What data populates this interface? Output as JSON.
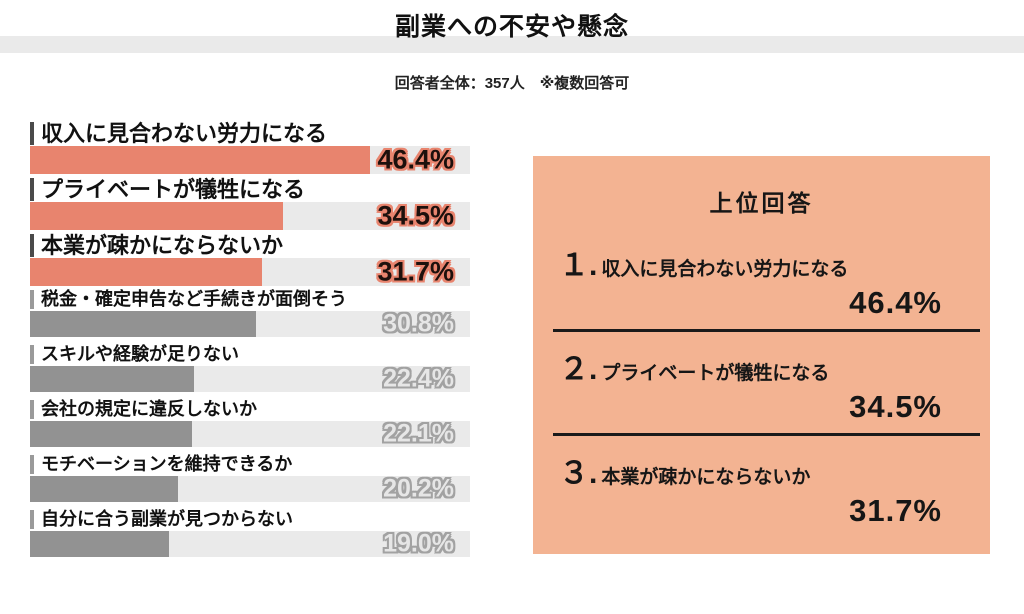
{
  "header": {
    "title": "副業への不安や懸念",
    "subtitle": "回答者全体：357人　※複数回答可"
  },
  "colors": {
    "accent": "#e8846e",
    "panel_bg": "#f3b392",
    "gray_bar": "#929292",
    "track": "#eaeaea",
    "band": "#eaeaea"
  },
  "chart_data": {
    "type": "bar",
    "orientation": "horizontal",
    "title": "副業への不安や懸念",
    "subtitle": "回答者全体：357人　※複数回答可",
    "unit": "%",
    "xlim": [
      0,
      60
    ],
    "grid": false,
    "legend": "none",
    "categories": [
      "収入に見合わない労力になる",
      "プライベートが犠牲になる",
      "本業が疎かにならないか",
      "税金・確定申告など手続きが面倒そう",
      "スキルや経験が足りない",
      "会社の規定に違反しないか",
      "モチベーションを維持できるか",
      "自分に合う副業が見つからない"
    ],
    "values": [
      46.4,
      34.5,
      31.7,
      30.8,
      22.4,
      22.1,
      20.2,
      19.0
    ],
    "bars": [
      {
        "label": "収入に見合わない労力になる",
        "value": 46.4,
        "display": "46.4%",
        "highlighted": true
      },
      {
        "label": "プライベートが犠牲になる",
        "value": 34.5,
        "display": "34.5%",
        "highlighted": true
      },
      {
        "label": "本業が疎かにならないか",
        "value": 31.7,
        "display": "31.7%",
        "highlighted": true
      },
      {
        "label": "税金・確定申告など手続きが面倒そう",
        "value": 30.8,
        "display": "30.8%",
        "highlighted": false
      },
      {
        "label": "スキルや経験が足りない",
        "value": 22.4,
        "display": "22.4%",
        "highlighted": false
      },
      {
        "label": "会社の規定に違反しないか",
        "value": 22.1,
        "display": "22.1%",
        "highlighted": false
      },
      {
        "label": "モチベーションを維持できるか",
        "value": 20.2,
        "display": "20.2%",
        "highlighted": false
      },
      {
        "label": "自分に合う副業が見つからない",
        "value": 19.0,
        "display": "19.0%",
        "highlighted": false
      }
    ]
  },
  "panel": {
    "title": "上位回答",
    "items": [
      {
        "rank": "１.",
        "label": "収入に見合わない労力になる",
        "value": "46.4%"
      },
      {
        "rank": "２.",
        "label": "プライベートが犠牲になる",
        "value": "34.5%"
      },
      {
        "rank": "３.",
        "label": "本業が疎かにならないか",
        "value": "31.7%"
      }
    ]
  }
}
